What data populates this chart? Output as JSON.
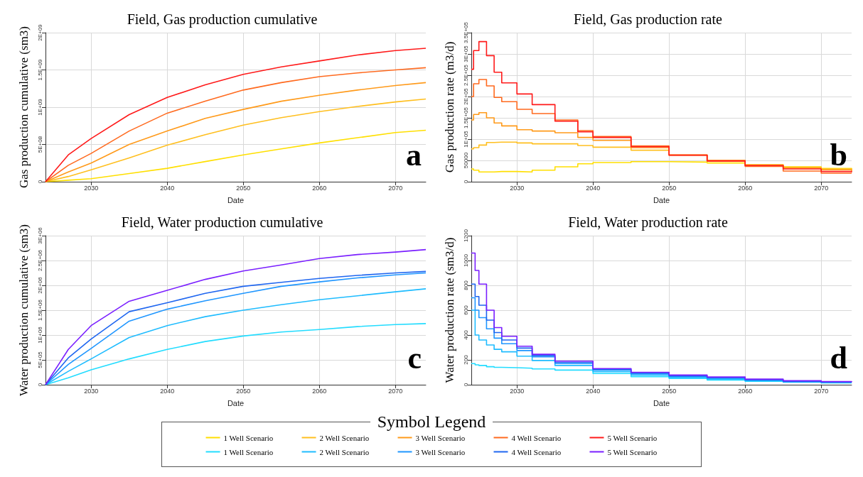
{
  "chart_data": [
    {
      "type": "line",
      "title": "Field, Gas production cumulative",
      "xlabel": "Date",
      "ylabel": "Gas production cumulative (sm3)",
      "x": [
        2024,
        2027,
        2030,
        2035,
        2040,
        2045,
        2050,
        2055,
        2060,
        2065,
        2070,
        2074
      ],
      "xlim": [
        2024,
        2074
      ],
      "xticks": [
        2030,
        2040,
        2050,
        2060,
        2070
      ],
      "ylim": [
        0,
        2000000000
      ],
      "yticks": [
        0,
        {
          "value": 500000000,
          "label": "5E+08"
        },
        {
          "value": 1000000000,
          "label": "1E+09"
        },
        {
          "value": 1500000000,
          "label": "1.5E+09"
        },
        {
          "value": 2000000000,
          "label": "2E+09"
        }
      ],
      "grid": true,
      "legend": "bottom",
      "legend_title": "Symbol Legend",
      "annotations": [
        "a"
      ],
      "series": [
        {
          "name": "1 Well Scenario",
          "color": "#ffdf00",
          "values": [
            0,
            20000000,
            40000000,
            110000000,
            180000000,
            270000000,
            360000000,
            440000000,
            520000000,
            590000000,
            660000000,
            690000000
          ]
        },
        {
          "name": "2 Well Scenario",
          "color": "#ffbf1f",
          "values": [
            0,
            70000000,
            160000000,
            320000000,
            490000000,
            630000000,
            760000000,
            860000000,
            940000000,
            1010000000,
            1070000000,
            1110000000
          ]
        },
        {
          "name": "3 Well Scenario",
          "color": "#ff9a1a",
          "values": [
            0,
            130000000,
            250000000,
            500000000,
            680000000,
            850000000,
            970000000,
            1080000000,
            1160000000,
            1230000000,
            1290000000,
            1330000000
          ]
        },
        {
          "name": "4 Well Scenario",
          "color": "#ff6a1f",
          "values": [
            0,
            220000000,
            380000000,
            680000000,
            920000000,
            1080000000,
            1230000000,
            1330000000,
            1410000000,
            1460000000,
            1500000000,
            1530000000
          ]
        },
        {
          "name": "5 Well Scenario",
          "color": "#ff1a1a",
          "values": [
            0,
            360000000,
            580000000,
            900000000,
            1130000000,
            1300000000,
            1440000000,
            1540000000,
            1620000000,
            1700000000,
            1760000000,
            1790000000
          ]
        }
      ]
    },
    {
      "type": "step",
      "title": "Field, Gas production rate",
      "xlabel": "Date",
      "ylabel": "Gas production rate (m3/d)",
      "x": [
        2024,
        2024.3,
        2025,
        2026,
        2027,
        2028,
        2030,
        2032,
        2035,
        2038,
        2040,
        2045,
        2050,
        2055,
        2060,
        2065,
        2070,
        2074
      ],
      "xlim": [
        2024,
        2074
      ],
      "xticks": [
        2030,
        2040,
        2050,
        2060,
        2070
      ],
      "ylim": [
        0,
        350000
      ],
      "yticks": [
        0,
        50000,
        {
          "value": 100000,
          "label": "1E+05"
        },
        {
          "value": 150000,
          "label": "1.5E+05"
        },
        {
          "value": 200000,
          "label": "2E+05"
        },
        {
          "value": 250000,
          "label": "2.5E+05"
        },
        {
          "value": 300000,
          "label": "3E+05"
        },
        {
          "value": 350000,
          "label": "3.5E+05"
        }
      ],
      "grid": true,
      "annotations": [
        "b"
      ],
      "series": [
        {
          "color": "#ffdf00",
          "values": [
            30000,
            27000,
            23000,
            23000,
            24000,
            24000,
            23000,
            27000,
            35000,
            42000,
            45000,
            47000,
            46000,
            44000,
            39000,
            35000,
            31000,
            29000
          ]
        },
        {
          "color": "#ffbf1f",
          "values": [
            77000,
            80000,
            86000,
            92000,
            93000,
            93000,
            91000,
            89000,
            89000,
            85000,
            81000,
            74000,
            62000,
            50000,
            40000,
            34000,
            30000,
            28000
          ]
        },
        {
          "color": "#ff9a1a",
          "values": [
            145000,
            158000,
            162000,
            150000,
            138000,
            131000,
            122000,
            119000,
            115000,
            104000,
            97000,
            80000,
            63000,
            50000,
            39000,
            32000,
            28000,
            25000
          ]
        },
        {
          "color": "#ff6a1f",
          "values": [
            200000,
            230000,
            240000,
            225000,
            198000,
            188000,
            170000,
            160000,
            145000,
            120000,
            106000,
            84000,
            63000,
            48000,
            36000,
            25000,
            20000,
            20000
          ]
        },
        {
          "color": "#ff1a1a",
          "values": [
            264000,
            308000,
            329000,
            296000,
            257000,
            232000,
            206000,
            181000,
            142000,
            117000,
            104000,
            82000,
            62000,
            49000,
            38000,
            30000,
            24000,
            22000
          ]
        }
      ]
    },
    {
      "type": "line",
      "title": "Field, Water production cumulative",
      "xlabel": "Date",
      "ylabel": "Water production cumulative (sm3)",
      "x": [
        2024,
        2027,
        2030,
        2035,
        2040,
        2045,
        2050,
        2055,
        2060,
        2065,
        2070,
        2074
      ],
      "xlim": [
        2024,
        2074
      ],
      "xticks": [
        2030,
        2040,
        2050,
        2060,
        2070
      ],
      "ylim": [
        0,
        3000000
      ],
      "yticks": [
        0,
        {
          "value": 500000,
          "label": "5E+05"
        },
        {
          "value": 1000000,
          "label": "1E+06"
        },
        {
          "value": 1500000,
          "label": "1.5E+06"
        },
        {
          "value": 2000000,
          "label": "2E+06"
        },
        {
          "value": 2500000,
          "label": "2.5E+06"
        },
        {
          "value": 3000000,
          "label": "3E+06"
        }
      ],
      "grid": true,
      "legend": "bottom",
      "annotations": [
        "c"
      ],
      "series": [
        {
          "name": "1 Well Scenario",
          "color": "#22dcff",
          "values": [
            0,
            140000,
            300000,
            520000,
            710000,
            870000,
            980000,
            1060000,
            1110000,
            1170000,
            1210000,
            1230000
          ]
        },
        {
          "name": "2 Well Scenario",
          "color": "#1fbcff",
          "values": [
            0,
            270000,
            520000,
            950000,
            1190000,
            1370000,
            1500000,
            1610000,
            1710000,
            1790000,
            1870000,
            1930000
          ]
        },
        {
          "name": "3 Well Scenario",
          "color": "#1f96ff",
          "values": [
            0,
            410000,
            730000,
            1280000,
            1520000,
            1690000,
            1840000,
            1980000,
            2070000,
            2150000,
            2210000,
            2250000
          ]
        },
        {
          "name": "4 Well Scenario",
          "color": "#1f66f0",
          "values": [
            0,
            540000,
            920000,
            1470000,
            1650000,
            1840000,
            1980000,
            2060000,
            2140000,
            2200000,
            2250000,
            2280000
          ]
        },
        {
          "name": "5 Well Scenario",
          "color": "#7a1fff",
          "values": [
            0,
            710000,
            1190000,
            1680000,
            1900000,
            2120000,
            2290000,
            2410000,
            2540000,
            2620000,
            2670000,
            2720000
          ]
        }
      ]
    },
    {
      "type": "step",
      "title": "Field, Water production rate",
      "xlabel": "Date",
      "ylabel": "Water production rate (sm3/d)",
      "x": [
        2024,
        2024.5,
        2025,
        2026,
        2027,
        2028,
        2030,
        2032,
        2035,
        2040,
        2045,
        2050,
        2055,
        2060,
        2065,
        2070,
        2074
      ],
      "xlim": [
        2024,
        2074
      ],
      "xticks": [
        2030,
        2040,
        2050,
        2060,
        2070
      ],
      "ylim": [
        0,
        1200
      ],
      "yticks": [
        0,
        200,
        400,
        600,
        800,
        1000,
        1200
      ],
      "grid": true,
      "annotations": [
        "d"
      ],
      "series": [
        {
          "color": "#22dcff",
          "values": [
            170,
            160,
            155,
            145,
            140,
            137,
            133,
            127,
            118,
            90,
            65,
            50,
            38,
            28,
            20,
            15,
            12
          ]
        },
        {
          "color": "#1fbcff",
          "values": [
            600,
            400,
            360,
            320,
            285,
            265,
            230,
            195,
            155,
            105,
            78,
            58,
            45,
            32,
            22,
            17,
            14
          ]
        },
        {
          "color": "#1f96ff",
          "values": [
            700,
            600,
            540,
            450,
            375,
            330,
            275,
            225,
            170,
            118,
            88,
            66,
            52,
            36,
            25,
            20,
            16
          ]
        },
        {
          "color": "#1f66f0",
          "values": [
            810,
            710,
            640,
            520,
            420,
            360,
            295,
            235,
            180,
            125,
            95,
            72,
            57,
            40,
            28,
            22,
            18
          ]
        },
        {
          "color": "#7a1fff",
          "values": [
            1060,
            920,
            810,
            600,
            460,
            390,
            310,
            245,
            190,
            130,
            100,
            78,
            62,
            45,
            32,
            25,
            20
          ]
        }
      ]
    }
  ]
}
